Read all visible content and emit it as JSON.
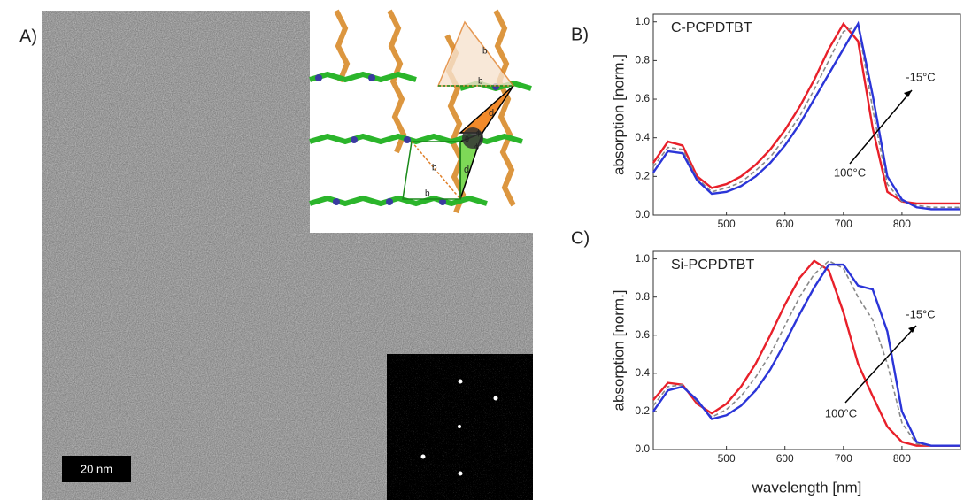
{
  "panel_labels": [
    "A)",
    "B)",
    "C)"
  ],
  "scale_bar": "20 nm",
  "inset": {
    "labels": [
      "b",
      "b",
      "b",
      "b",
      "d",
      "d",
      "ϕ",
      "ϕ",
      "θ"
    ]
  },
  "chart_data": [
    {
      "type": "line",
      "title": "C-PCPDTBT",
      "ylabel": "absorption [norm.]",
      "annotations": [
        "-15°C",
        "100°C"
      ],
      "x": [
        375,
        400,
        425,
        450,
        475,
        500,
        525,
        550,
        575,
        600,
        625,
        650,
        675,
        700,
        725,
        750,
        775,
        800,
        825,
        850,
        875,
        900
      ],
      "xlim": [
        375,
        900
      ],
      "xticks": [
        500,
        600,
        700,
        800
      ],
      "ylim": [
        0,
        1.04
      ],
      "yticks": [
        {
          "value": 0,
          "label": "0.0"
        },
        0.2,
        0.4,
        0.6,
        0.8,
        {
          "value": 1,
          "label": "1.0"
        }
      ],
      "series": [
        {
          "color": "#e8202a",
          "style": "solid",
          "values": [
            0.27,
            0.38,
            0.36,
            0.2,
            0.14,
            0.16,
            0.2,
            0.26,
            0.34,
            0.44,
            0.56,
            0.7,
            0.86,
            0.99,
            0.9,
            0.45,
            0.12,
            0.07,
            0.06,
            0.06,
            0.06,
            0.06
          ]
        },
        {
          "color": "#888888",
          "style": "dashed",
          "values": [
            0.25,
            0.35,
            0.34,
            0.19,
            0.12,
            0.14,
            0.17,
            0.23,
            0.3,
            0.4,
            0.51,
            0.65,
            0.8,
            0.95,
            0.98,
            0.55,
            0.16,
            0.07,
            0.05,
            0.04,
            0.04,
            0.04
          ]
        },
        {
          "color": "#2b35d8",
          "style": "solid",
          "values": [
            0.22,
            0.33,
            0.32,
            0.18,
            0.11,
            0.12,
            0.15,
            0.2,
            0.27,
            0.36,
            0.47,
            0.6,
            0.73,
            0.86,
            0.99,
            0.62,
            0.2,
            0.08,
            0.04,
            0.03,
            0.03,
            0.03
          ]
        }
      ]
    },
    {
      "type": "line",
      "title": "Si-PCPDTBT",
      "ylabel": "absorption [norm.]",
      "xlabel": "wavelength [nm]",
      "annotations": [
        "-15°C",
        "100°C"
      ],
      "x": [
        375,
        400,
        425,
        450,
        475,
        500,
        525,
        550,
        575,
        600,
        625,
        650,
        675,
        700,
        725,
        750,
        775,
        800,
        825,
        850,
        875,
        900
      ],
      "xlim": [
        375,
        900
      ],
      "xticks": [
        500,
        600,
        700,
        800
      ],
      "ylim": [
        0,
        1.04
      ],
      "yticks": [
        {
          "value": 0,
          "label": "0.0"
        },
        0.2,
        0.4,
        0.6,
        0.8,
        {
          "value": 1,
          "label": "1.0"
        }
      ],
      "series": [
        {
          "color": "#e8202a",
          "style": "solid",
          "values": [
            0.26,
            0.35,
            0.34,
            0.24,
            0.19,
            0.24,
            0.33,
            0.45,
            0.6,
            0.76,
            0.9,
            0.99,
            0.94,
            0.72,
            0.45,
            0.28,
            0.12,
            0.04,
            0.02,
            0.02,
            0.02,
            0.02
          ]
        },
        {
          "color": "#888888",
          "style": "dashed",
          "values": [
            0.23,
            0.33,
            0.34,
            0.25,
            0.17,
            0.21,
            0.28,
            0.38,
            0.5,
            0.65,
            0.8,
            0.92,
            0.99,
            0.95,
            0.8,
            0.68,
            0.45,
            0.14,
            0.03,
            0.02,
            0.02,
            0.02
          ]
        },
        {
          "color": "#2b35d8",
          "style": "solid",
          "values": [
            0.2,
            0.31,
            0.33,
            0.26,
            0.16,
            0.18,
            0.23,
            0.31,
            0.42,
            0.56,
            0.71,
            0.85,
            0.97,
            0.97,
            0.86,
            0.84,
            0.62,
            0.2,
            0.04,
            0.02,
            0.02,
            0.02
          ]
        }
      ]
    }
  ]
}
